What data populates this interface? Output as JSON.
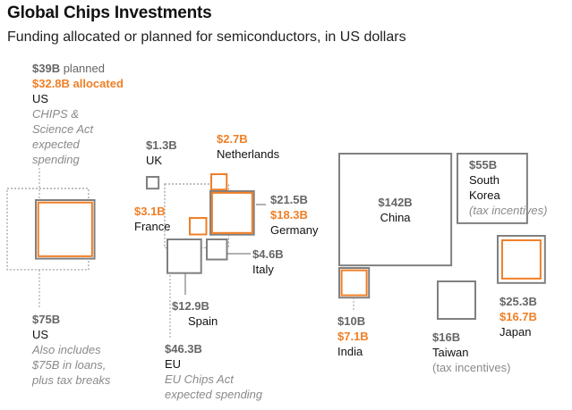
{
  "title": "Global Chips Investments",
  "subtitle": "Funding allocated or planned for semiconductors, in US dollars",
  "colors": {
    "planned": "#808080",
    "allocated": "#f07f26",
    "text": "#111111",
    "note": "#8a8a8a"
  },
  "chart_data": {
    "type": "proportional-squares",
    "unit": "US dollars (billions)",
    "entries": [
      {
        "id": "us-chips",
        "country": "US",
        "planned_label": "$39B",
        "planned_word": "planned",
        "allocated_label": "$32.8B",
        "allocated_word": "allocated",
        "planned": 39,
        "allocated": 32.8,
        "note": [
          "CHIPS &",
          "Science Act",
          "expected",
          "spending"
        ]
      },
      {
        "id": "us-total",
        "country": "US",
        "planned_label": "$75B",
        "planned": 75,
        "note": [
          "Also includes",
          "$75B in loans,",
          "plus tax breaks"
        ]
      },
      {
        "id": "uk",
        "country": "UK",
        "planned_label": "$1.3B",
        "planned": 1.3
      },
      {
        "id": "netherlands",
        "country": "Netherlands",
        "allocated_label": "$2.7B",
        "allocated": 2.7
      },
      {
        "id": "germany",
        "country": "Germany",
        "planned_label": "$21.5B",
        "allocated_label": "$18.3B",
        "planned": 21.5,
        "allocated": 18.3
      },
      {
        "id": "france",
        "country": "France",
        "allocated_label": "$3.1B",
        "allocated": 3.1
      },
      {
        "id": "italy",
        "country": "Italy",
        "planned_label": "$4.6B",
        "planned": 4.6
      },
      {
        "id": "spain",
        "country": "Spain",
        "planned_label": "$12.9B",
        "planned": 12.9
      },
      {
        "id": "eu",
        "country": "EU",
        "planned_label": "$46.3B",
        "planned": 46.3,
        "note": [
          "EU Chips Act",
          "expected spending"
        ]
      },
      {
        "id": "china",
        "country": "China",
        "planned_label": "$142B",
        "planned": 142
      },
      {
        "id": "south-korea",
        "country": "South Korea",
        "country_lines": [
          "South",
          "Korea"
        ],
        "planned_label": "$55B",
        "planned": 55,
        "note": [
          "(tax incentives)"
        ]
      },
      {
        "id": "japan",
        "country": "Japan",
        "planned_label": "$25.3B",
        "allocated_label": "$16.7B",
        "planned": 25.3,
        "allocated": 16.7
      },
      {
        "id": "india",
        "country": "India",
        "planned_label": "$10B",
        "allocated_label": "$7.1B",
        "planned": 10,
        "allocated": 7.1
      },
      {
        "id": "taiwan",
        "country": "Taiwan",
        "planned_label": "$16B",
        "planned": 16,
        "note": [
          "(tax incentives)"
        ]
      }
    ]
  }
}
